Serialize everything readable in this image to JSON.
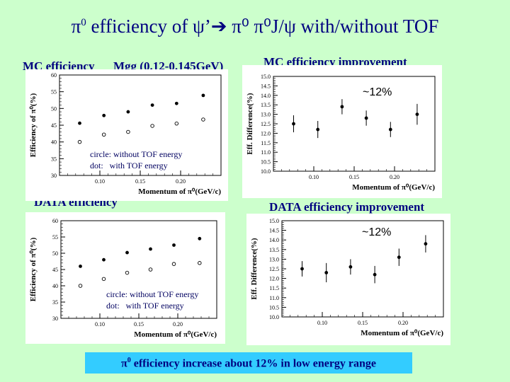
{
  "title": {
    "pi": "π",
    "sup": "0",
    "text": " efficiency of ψ’➔ π⁰ π⁰J/ψ with/without TOF"
  },
  "labels": {
    "mc_eff": "MC efficiency",
    "mgg": "Mgg (0.12-0.145GeV)",
    "mc_imp": "MC efficiency improvement",
    "data_eff": "DATA efficiency",
    "data_imp": "DATA efficiency improvement"
  },
  "annotations": {
    "mc_pct": "~12%",
    "data_pct": "~12%"
  },
  "legend": {
    "circle": "circle: without TOF energy",
    "dot": "dot:   with TOF energy"
  },
  "bottom": {
    "pi": "π",
    "sup": "0",
    "text": " efficiency increase about 12% in low energy range"
  },
  "colors": {
    "background": "#ccffcc",
    "title": "#000080",
    "bottom_box": "#33ccff"
  },
  "chart_data": [
    {
      "id": "mc_eff",
      "type": "scatter",
      "ylabel": "Efficiency of π⁰(%)",
      "xlabel": "Momentum of π⁰(GeV/c)",
      "xlim": [
        0.05,
        0.25
      ],
      "ylim": [
        30,
        60
      ],
      "xticks": [
        0.1,
        0.15,
        0.2
      ],
      "xtick_labels": [
        "0.10",
        "0.15",
        "0.20"
      ],
      "yticks": [
        30,
        35,
        40,
        45,
        50,
        55,
        60
      ],
      "ytick_labels": [
        "30",
        "35",
        "40",
        "45",
        "50",
        "55",
        "60"
      ],
      "series": [
        {
          "name": "without TOF energy",
          "marker": "open-circle",
          "x": [
            0.075,
            0.105,
            0.135,
            0.165,
            0.195,
            0.228
          ],
          "y": [
            40.0,
            42.2,
            43.0,
            44.8,
            45.5,
            46.7
          ]
        },
        {
          "name": "with TOF energy",
          "marker": "dot",
          "x": [
            0.075,
            0.105,
            0.135,
            0.165,
            0.195,
            0.228
          ],
          "y": [
            45.6,
            47.9,
            49.0,
            51.0,
            51.5,
            53.9
          ]
        }
      ]
    },
    {
      "id": "mc_imp",
      "type": "scatter",
      "ylabel": "Eff. Difference(%)",
      "xlabel": "Momentum of π⁰(GeV/c)",
      "xlim": [
        0.05,
        0.25
      ],
      "ylim": [
        10,
        15
      ],
      "xticks": [
        0.1,
        0.15,
        0.2
      ],
      "xtick_labels": [
        "0.10",
        "0.15",
        "0.20"
      ],
      "yticks": [
        10,
        10.5,
        11,
        11.5,
        12,
        12.5,
        13,
        13.5,
        14,
        14.5,
        15
      ],
      "ytick_labels": [
        "10.0",
        "10.5",
        "11.0",
        "11.5",
        "12.0",
        "12.5",
        "13.0",
        "13.5",
        "14.0",
        "14.5",
        "15.0"
      ],
      "series": [
        {
          "name": "difference",
          "marker": "dot",
          "x": [
            0.075,
            0.105,
            0.135,
            0.165,
            0.195,
            0.228
          ],
          "y": [
            12.5,
            12.2,
            13.4,
            12.8,
            12.2,
            13.0
          ],
          "err": [
            0.45,
            0.45,
            0.4,
            0.4,
            0.4,
            0.55
          ]
        }
      ]
    },
    {
      "id": "data_eff",
      "type": "scatter",
      "ylabel": "Efficiency of π⁰(%)",
      "xlabel": "Momentum of π⁰(GeV/c)",
      "xlim": [
        0.05,
        0.25
      ],
      "ylim": [
        30,
        60
      ],
      "xticks": [
        0.1,
        0.15,
        0.2
      ],
      "xtick_labels": [
        "0.10",
        "0.15",
        "0.20"
      ],
      "yticks": [
        30,
        35,
        40,
        45,
        50,
        55,
        60
      ],
      "ytick_labels": [
        "30",
        "35",
        "40",
        "45",
        "50",
        "55",
        "60"
      ],
      "series": [
        {
          "name": "without TOF energy",
          "marker": "open-circle",
          "x": [
            0.075,
            0.105,
            0.135,
            0.165,
            0.195,
            0.228
          ],
          "y": [
            40.0,
            42.1,
            44.0,
            45.0,
            46.7,
            47.0
          ]
        },
        {
          "name": "with TOF energy",
          "marker": "dot",
          "x": [
            0.075,
            0.105,
            0.135,
            0.165,
            0.195,
            0.228
          ],
          "y": [
            46.0,
            48.0,
            50.2,
            51.3,
            52.5,
            54.5
          ]
        }
      ]
    },
    {
      "id": "data_imp",
      "type": "scatter",
      "ylabel": "Eff. Difference(%)",
      "xlabel": "Momentum of π⁰(GeV/c)",
      "xlim": [
        0.05,
        0.25
      ],
      "ylim": [
        10,
        15
      ],
      "xticks": [
        0.1,
        0.15,
        0.2
      ],
      "xtick_labels": [
        "0.10",
        "0.15",
        "0.20"
      ],
      "yticks": [
        10,
        10.5,
        11,
        11.5,
        12,
        12.5,
        13,
        13.5,
        14,
        14.5,
        15
      ],
      "ytick_labels": [
        "10.0",
        "10.5",
        "11.0",
        "11.5",
        "12.0",
        "12.5",
        "13.0",
        "13.5",
        "14.0",
        "14.5",
        "15.0"
      ],
      "series": [
        {
          "name": "difference",
          "marker": "dot",
          "x": [
            0.075,
            0.105,
            0.135,
            0.165,
            0.195,
            0.228
          ],
          "y": [
            12.5,
            12.3,
            12.6,
            12.2,
            13.1,
            13.8
          ],
          "err": [
            0.4,
            0.5,
            0.4,
            0.45,
            0.45,
            0.45
          ]
        }
      ]
    }
  ]
}
